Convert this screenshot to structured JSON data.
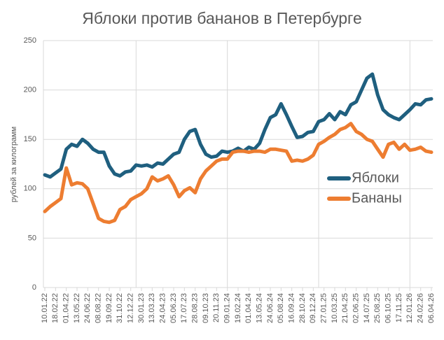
{
  "chart_data": {
    "type": "line",
    "title": "Яблоки против бананов в Петербурге",
    "y_label": "рублей за килограмм",
    "categories": [
      "10.01.22",
      null,
      "18.02.22",
      null,
      "01.04.22",
      null,
      "13.05.22",
      null,
      "24.06.22",
      null,
      "08.08.22",
      null,
      "19.09.22",
      null,
      "31.10.22",
      null,
      "12.12.22",
      null,
      "30.01.23",
      null,
      "13.03.23",
      null,
      "24.04.23",
      null,
      "05.06.23",
      null,
      "17.07.23",
      null,
      "28.08.23",
      null,
      "09.10.23",
      null,
      "20.11.23",
      null,
      "09.01.24",
      null,
      "19.02.24",
      null,
      "01.04.24",
      null,
      "13.05.24",
      null,
      "24.06.24",
      null,
      "05.08.24",
      null,
      "16.09.24",
      null,
      "28.10.24",
      null,
      "09.12.24",
      null,
      "27.01.25",
      null,
      "10.03.25",
      null,
      "21.04.25",
      null,
      "02.06.25",
      null,
      "14.07.25",
      null,
      "25.08.25",
      null,
      "06.10.25",
      null,
      "17.11.25",
      null,
      "12.01.26",
      null,
      "24.02.26",
      null,
      "06.04.26"
    ],
    "series": [
      {
        "name": "Яблоки",
        "color": "#1f5f7f",
        "values": [
          114,
          112,
          116,
          120,
          140,
          145,
          143,
          150,
          146,
          140,
          137,
          137,
          123,
          115,
          113,
          117,
          118,
          124,
          123,
          124,
          122,
          126,
          125,
          130,
          135,
          137,
          150,
          158,
          160,
          145,
          135,
          132,
          133,
          138,
          137,
          138,
          141,
          138,
          142,
          140,
          146,
          160,
          172,
          175,
          186,
          175,
          163,
          152,
          153,
          157,
          158,
          168,
          170,
          176,
          170,
          178,
          175,
          185,
          188,
          200,
          212,
          216,
          195,
          180,
          175,
          172,
          170,
          175,
          180,
          186,
          185,
          190,
          191
        ]
      },
      {
        "name": "Бананы",
        "color": "#ed7d31",
        "values": [
          77,
          82,
          86,
          90,
          121,
          104,
          106,
          105,
          100,
          85,
          70,
          67,
          66,
          68,
          79,
          82,
          89,
          92,
          95,
          100,
          112,
          108,
          110,
          113,
          104,
          92,
          98,
          101,
          96,
          110,
          118,
          123,
          128,
          130,
          130,
          137,
          138,
          138,
          137,
          138,
          138,
          137,
          140,
          140,
          139,
          138,
          128,
          129,
          128,
          130,
          134,
          145,
          148,
          152,
          155,
          160,
          162,
          166,
          158,
          155,
          150,
          148,
          140,
          132,
          145,
          147,
          140,
          145,
          139,
          140,
          142,
          138,
          137
        ]
      }
    ],
    "ylim": [
      0,
      250
    ],
    "yticks": [
      0,
      50,
      100,
      150,
      200,
      250
    ],
    "grid": true,
    "legend": "right"
  }
}
